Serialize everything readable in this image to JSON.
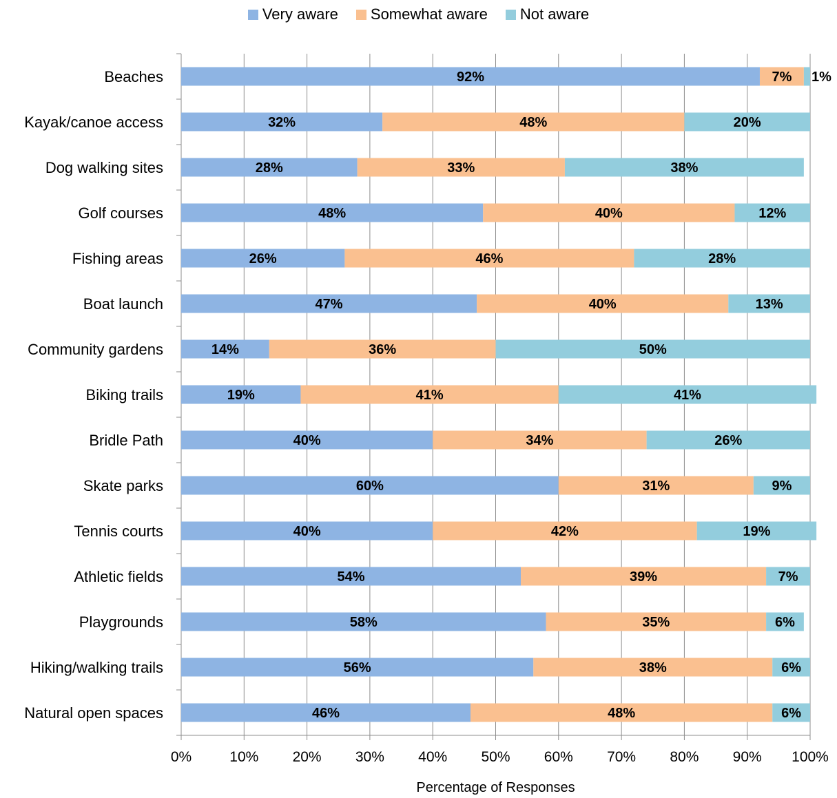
{
  "chart_data": {
    "type": "bar",
    "orientation": "horizontal",
    "stacked": true,
    "categories": [
      "Beaches",
      "Kayak/canoe access",
      "Dog walking sites",
      "Golf courses",
      "Fishing areas",
      "Boat launch",
      "Community gardens",
      "Biking trails",
      "Bridle Path",
      "Skate parks",
      "Tennis courts",
      "Athletic fields",
      "Playgrounds",
      "Hiking/walking trails",
      "Natural open spaces"
    ],
    "series": [
      {
        "name": "Very aware",
        "color": "#8EB4E3",
        "values": [
          92,
          32,
          28,
          48,
          26,
          47,
          14,
          19,
          40,
          60,
          40,
          54,
          58,
          56,
          46
        ],
        "labels": [
          "92%",
          "32%",
          "28%",
          "48%",
          "26%",
          "47%",
          "14%",
          "19%",
          "40%",
          "60%",
          "40%",
          "54%",
          "58%",
          "56%",
          "46%"
        ]
      },
      {
        "name": "Somewhat aware",
        "color": "#FAC090",
        "values": [
          7,
          48,
          33,
          40,
          46,
          40,
          36,
          41,
          34,
          31,
          42,
          39,
          35,
          38,
          48
        ],
        "labels": [
          "7%",
          "48%",
          "33%",
          "40%",
          "46%",
          "40%",
          "36%",
          "41%",
          "34%",
          "31%",
          "42%",
          "39%",
          "35%",
          "38%",
          "48%"
        ]
      },
      {
        "name": "Not aware",
        "color": "#93CDDD",
        "values": [
          1,
          20,
          38,
          12,
          28,
          13,
          50,
          41,
          26,
          9,
          19,
          7,
          6,
          6,
          6
        ],
        "labels": [
          "1%",
          "20%",
          "38%",
          "12%",
          "28%",
          "13%",
          "50%",
          "41%",
          "26%",
          "9%",
          "19%",
          "7%",
          "6%",
          "6%",
          "6%"
        ]
      }
    ],
    "xlabel": "Percentage of Responses",
    "ylabel": "",
    "xlim": [
      0,
      100
    ],
    "xticks": [
      "0%",
      "10%",
      "20%",
      "30%",
      "40%",
      "50%",
      "60%",
      "70%",
      "80%",
      "90%",
      "100%"
    ],
    "grid": true,
    "legend_position": "top"
  }
}
